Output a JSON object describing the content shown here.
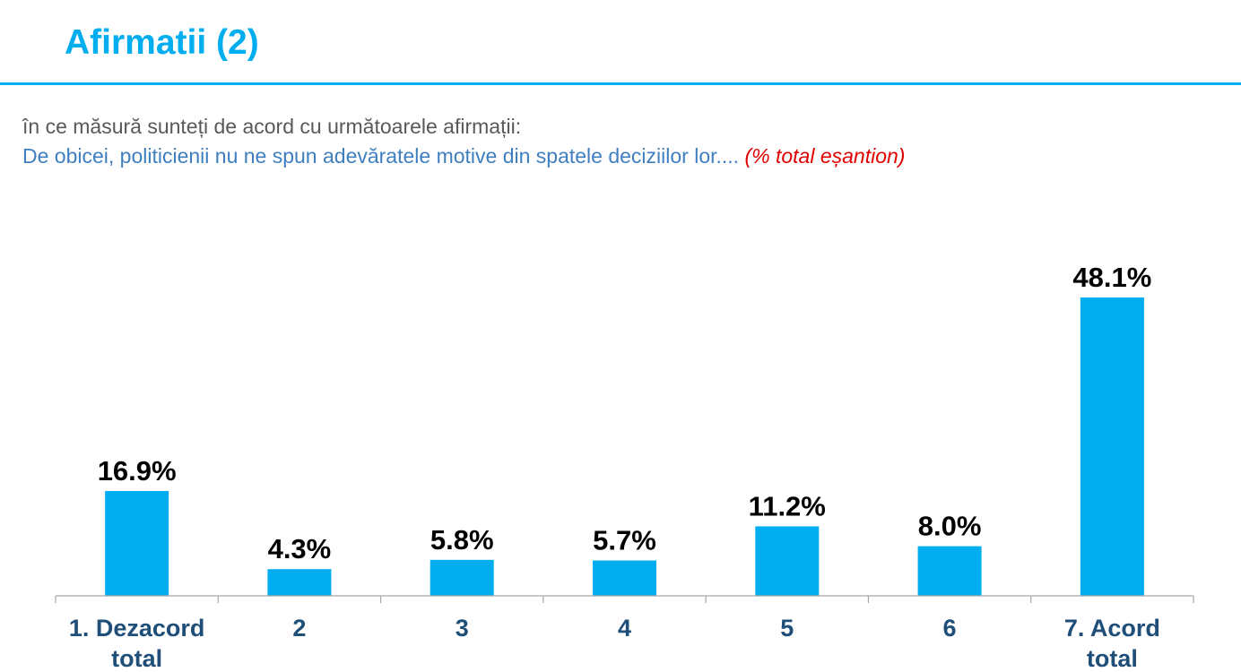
{
  "header": {
    "title": "Afirmatii (2)"
  },
  "subtitle": {
    "question": "în ce măsură sunteți de acord cu următoarele afirmații:",
    "statement": "De obicei, politicienii nu ne spun adevăratele motive din spatele deciziilor lor....",
    "base_note": "(% total eșantion)"
  },
  "colors": {
    "accent": "#00aeef",
    "bar": "#00aeef",
    "category_text": "#1f4e79",
    "statement_text": "#3f7fc0",
    "note_text": "#e00000"
  },
  "chart_data": {
    "type": "bar",
    "categories": [
      [
        "1. Dezacord",
        "total"
      ],
      [
        "2"
      ],
      [
        "3"
      ],
      [
        "4"
      ],
      [
        "5"
      ],
      [
        "6"
      ],
      [
        "7. Acord",
        "total"
      ]
    ],
    "values": [
      16.9,
      4.3,
      5.8,
      5.7,
      11.2,
      8.0,
      48.1
    ],
    "data_labels": [
      "16.9%",
      "4.3%",
      "5.8%",
      "5.7%",
      "11.2%",
      "8.0%",
      "48.1%"
    ],
    "unit": "%",
    "ylim": [
      0,
      52
    ],
    "grid": false,
    "legend": "none"
  }
}
